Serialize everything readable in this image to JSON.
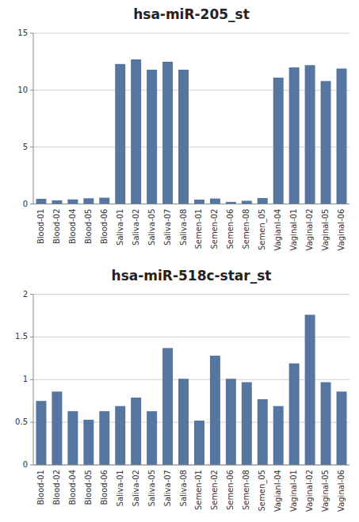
{
  "chart_data": [
    {
      "type": "bar",
      "title": "hsa-miR-205_st",
      "categories": [
        "Blood-01",
        "Blood-02",
        "Blood-04",
        "Blood-05",
        "Blood-06",
        "Saliva-01",
        "Saliva-02",
        "Saliva-05",
        "Saliva-07",
        "Saliva-08",
        "Semen-01",
        "Semen-02",
        "Semen-06",
        "Semen-08",
        "Semen_05",
        "VagianI-04",
        "Vaginal-01",
        "Vaginal-02",
        "Vaginal-05",
        "Vaginal-06"
      ],
      "values": [
        0.45,
        0.32,
        0.4,
        0.5,
        0.55,
        12.3,
        12.7,
        11.8,
        12.5,
        11.8,
        0.38,
        0.48,
        0.18,
        0.28,
        0.52,
        11.1,
        12.0,
        12.2,
        10.8,
        11.9
      ],
      "color": "#5576a0",
      "ylim": [
        0,
        15
      ],
      "yticks": [
        0,
        5,
        10,
        15
      ],
      "grid": true
    },
    {
      "type": "bar",
      "title": "hsa-miR-518c-star_st",
      "categories": [
        "Blood-01",
        "Blood-02",
        "Blood-04",
        "Blood-05",
        "Blood-06",
        "Saliva-01",
        "Saliva-02",
        "Saliva-05",
        "Saliva-07",
        "Saliva-08",
        "Semen-01",
        "Semen-02",
        "Semen-06",
        "Semen-08",
        "Semen_05",
        "VagianI-04",
        "Vaginal-01",
        "Vaginal-02",
        "Vaginal-05",
        "Vaginal-06"
      ],
      "values": [
        0.75,
        0.86,
        0.63,
        0.53,
        0.63,
        0.69,
        0.79,
        0.63,
        1.37,
        1.01,
        0.52,
        1.28,
        1.01,
        0.97,
        0.77,
        0.69,
        1.19,
        1.76,
        0.97,
        0.86
      ],
      "color": "#5576a0",
      "ylim": [
        0,
        2
      ],
      "yticks": [
        0,
        0.5,
        1,
        1.5,
        2
      ],
      "grid": true
    }
  ]
}
